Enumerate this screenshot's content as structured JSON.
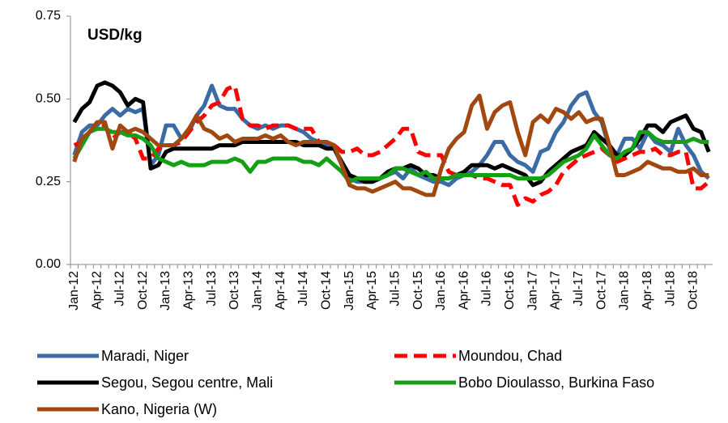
{
  "chart_data": {
    "type": "line",
    "title": "USD/kg",
    "categories": [
      "Jan-12",
      null,
      null,
      "Apr-12",
      null,
      null,
      "Jul-12",
      null,
      null,
      "Oct-12",
      null,
      null,
      "Jan-13",
      null,
      null,
      "Apr-13",
      null,
      null,
      "Jul-13",
      null,
      null,
      "Oct-13",
      null,
      null,
      "Jan-14",
      null,
      null,
      "Apr-14",
      null,
      null,
      "Jul-14",
      null,
      null,
      "Oct-14",
      null,
      null,
      "Jan-15",
      null,
      null,
      "Apr-15",
      null,
      null,
      "Jul-15",
      null,
      null,
      "Oct-15",
      null,
      null,
      "Jan-16",
      null,
      null,
      "Apr-16",
      null,
      null,
      "Jul-16",
      null,
      null,
      "Oct-16",
      null,
      null,
      "Jan-17",
      null,
      null,
      "Apr-17",
      null,
      null,
      "Jul-17",
      null,
      null,
      "Oct-17",
      null,
      null,
      "Jan-18",
      null,
      null,
      "Apr-18",
      null,
      null,
      "Jul-18",
      null,
      null,
      "Oct-18",
      null,
      null
    ],
    "ylim": [
      0,
      0.75
    ],
    "yticks": [
      {
        "value": 0,
        "label": "0.00"
      },
      0.25,
      {
        "value": 0.5,
        "label": "0.50"
      },
      0.75
    ],
    "grid": false,
    "series": [
      {
        "name": "Maradi, Niger",
        "color": "#3b6ba5",
        "dash": "solid",
        "values": [
          0.33,
          0.4,
          0.42,
          0.42,
          0.45,
          0.47,
          0.45,
          0.47,
          0.46,
          0.47,
          0.3,
          0.33,
          0.42,
          0.42,
          0.38,
          0.4,
          0.45,
          0.48,
          0.54,
          0.48,
          0.47,
          0.47,
          0.44,
          0.42,
          0.41,
          0.42,
          0.41,
          0.42,
          0.42,
          0.41,
          0.4,
          0.38,
          0.37,
          0.36,
          0.35,
          0.3,
          0.26,
          0.25,
          0.25,
          0.25,
          0.26,
          0.27,
          0.28,
          0.26,
          0.29,
          0.27,
          0.26,
          0.25,
          0.25,
          0.24,
          0.26,
          0.27,
          0.28,
          0.3,
          0.33,
          0.37,
          0.37,
          0.33,
          0.31,
          0.3,
          0.28,
          0.34,
          0.35,
          0.4,
          0.43,
          0.48,
          0.51,
          0.52,
          0.46,
          0.43,
          0.35,
          0.33,
          0.38,
          0.38,
          0.35,
          0.4,
          0.37,
          0.36,
          0.34,
          0.41,
          0.36,
          0.33,
          0.28,
          0.26
        ]
      },
      {
        "name": "Moundou, Chad",
        "color": "#ff0000",
        "dash": "dashed",
        "values": [
          0.36,
          0.37,
          0.4,
          0.43,
          0.42,
          0.38,
          0.4,
          0.4,
          0.38,
          0.32,
          0.32,
          0.35,
          0.36,
          0.36,
          0.37,
          0.4,
          0.43,
          0.45,
          0.48,
          0.49,
          0.53,
          0.54,
          0.44,
          0.42,
          0.42,
          0.41,
          0.42,
          0.42,
          0.42,
          0.41,
          0.41,
          0.41,
          0.37,
          0.37,
          0.36,
          0.34,
          0.34,
          0.35,
          0.33,
          0.33,
          0.34,
          0.36,
          0.38,
          0.41,
          0.41,
          0.34,
          0.33,
          0.33,
          0.33,
          0.28,
          0.27,
          0.27,
          0.27,
          0.26,
          0.26,
          0.25,
          0.24,
          0.24,
          0.18,
          0.2,
          0.19,
          0.21,
          0.22,
          0.24,
          0.28,
          0.3,
          0.32,
          0.33,
          0.34,
          0.35,
          0.33,
          0.31,
          0.32,
          0.33,
          0.34,
          0.34,
          0.35,
          0.33,
          0.33,
          0.34,
          0.34,
          0.23,
          0.23,
          0.25
        ]
      },
      {
        "name": "Segou, Segou centre, Mali",
        "color": "#000000",
        "dash": "solid",
        "values": [
          0.43,
          0.47,
          0.49,
          0.54,
          0.55,
          0.54,
          0.52,
          0.48,
          0.5,
          0.49,
          0.29,
          0.3,
          0.34,
          0.35,
          0.35,
          0.35,
          0.35,
          0.35,
          0.35,
          0.36,
          0.36,
          0.36,
          0.37,
          0.37,
          0.37,
          0.37,
          0.37,
          0.37,
          0.37,
          0.37,
          0.36,
          0.36,
          0.36,
          0.35,
          0.35,
          0.31,
          0.27,
          0.26,
          0.25,
          0.25,
          0.26,
          0.28,
          0.29,
          0.29,
          0.3,
          0.29,
          0.27,
          0.27,
          0.26,
          0.26,
          0.27,
          0.28,
          0.3,
          0.3,
          0.3,
          0.29,
          0.3,
          0.29,
          0.28,
          0.27,
          0.24,
          0.25,
          0.28,
          0.3,
          0.32,
          0.34,
          0.35,
          0.36,
          0.4,
          0.38,
          0.36,
          0.33,
          0.33,
          0.35,
          0.38,
          0.42,
          0.42,
          0.4,
          0.43,
          0.44,
          0.45,
          0.41,
          0.4,
          0.34
        ]
      },
      {
        "name": "Bobo Dioulasso, Burkina Faso",
        "color": "#14a014",
        "dash": "solid",
        "values": [
          0.32,
          0.36,
          0.4,
          0.41,
          0.41,
          0.4,
          0.4,
          0.39,
          0.39,
          0.38,
          0.36,
          0.32,
          0.31,
          0.3,
          0.31,
          0.3,
          0.3,
          0.3,
          0.31,
          0.31,
          0.31,
          0.32,
          0.31,
          0.28,
          0.31,
          0.31,
          0.32,
          0.32,
          0.32,
          0.32,
          0.31,
          0.31,
          0.3,
          0.32,
          0.3,
          0.28,
          0.25,
          0.26,
          0.26,
          0.26,
          0.26,
          0.27,
          0.29,
          0.29,
          0.28,
          0.27,
          0.28,
          0.26,
          0.26,
          0.26,
          0.27,
          0.27,
          0.27,
          0.27,
          0.27,
          0.27,
          0.27,
          0.27,
          0.26,
          0.26,
          0.26,
          0.26,
          0.27,
          0.29,
          0.31,
          0.32,
          0.33,
          0.35,
          0.39,
          0.36,
          0.33,
          0.32,
          0.34,
          0.35,
          0.4,
          0.4,
          0.38,
          0.37,
          0.37,
          0.37,
          0.37,
          0.38,
          0.37,
          0.37
        ]
      },
      {
        "name": "Kano, Nigeria  (W)",
        "color": "#a0480f",
        "dash": "solid",
        "values": [
          0.31,
          0.38,
          0.4,
          0.43,
          0.43,
          0.35,
          0.42,
          0.4,
          0.41,
          0.4,
          0.38,
          0.36,
          0.36,
          0.36,
          0.38,
          0.41,
          0.45,
          0.41,
          0.4,
          0.38,
          0.39,
          0.37,
          0.38,
          0.38,
          0.38,
          0.39,
          0.38,
          0.39,
          0.37,
          0.36,
          0.37,
          0.37,
          0.37,
          0.37,
          0.36,
          0.3,
          0.24,
          0.23,
          0.23,
          0.22,
          0.23,
          0.24,
          0.25,
          0.23,
          0.23,
          0.22,
          0.21,
          0.21,
          0.29,
          0.35,
          0.38,
          0.4,
          0.48,
          0.51,
          0.41,
          0.46,
          0.48,
          0.49,
          0.4,
          0.33,
          0.43,
          0.45,
          0.43,
          0.47,
          0.46,
          0.44,
          0.46,
          0.43,
          0.44,
          0.44,
          0.36,
          0.27,
          0.27,
          0.28,
          0.29,
          0.31,
          0.3,
          0.29,
          0.29,
          0.28,
          0.28,
          0.29,
          0.27,
          0.27
        ]
      }
    ]
  }
}
